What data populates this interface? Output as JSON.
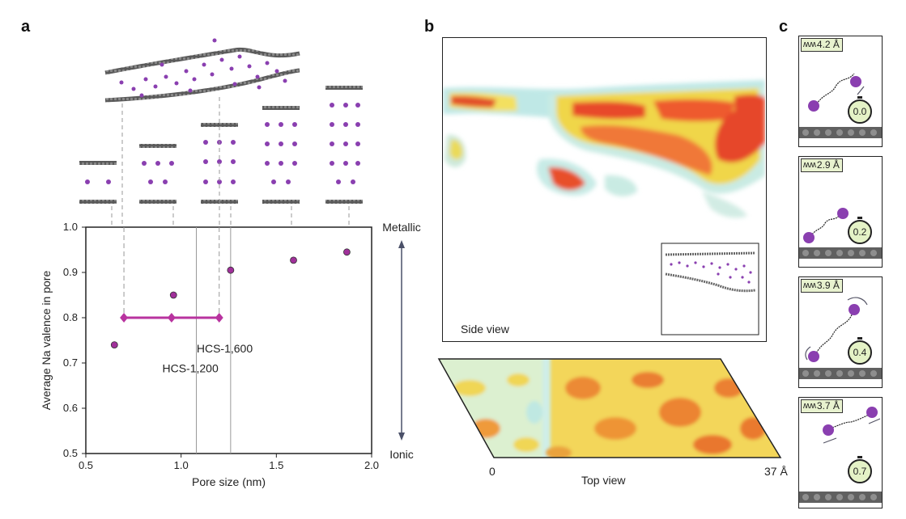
{
  "panels": {
    "a": "a",
    "b": "b",
    "c": "c"
  },
  "chart_data": {
    "type": "scatter",
    "xlabel": "Pore size (nm)",
    "ylabel": "Average Na valence in pore",
    "xlim": [
      0.5,
      2.0
    ],
    "ylim": [
      0.5,
      1.0
    ],
    "xticks": [
      "0.5",
      "1.0",
      "1.5",
      "2.0"
    ],
    "yticks": [
      "0.5",
      "0.6",
      "0.7",
      "0.8",
      "0.9",
      "1.0"
    ],
    "points": [
      {
        "x": 0.65,
        "y": 0.74
      },
      {
        "x": 0.96,
        "y": 0.85
      },
      {
        "x": 1.26,
        "y": 0.905
      },
      {
        "x": 1.59,
        "y": 0.927
      },
      {
        "x": 1.87,
        "y": 0.945
      }
    ],
    "range_bar": {
      "x_start": 0.7,
      "x_end": 1.2,
      "x_mid": 0.95,
      "y": 0.8
    },
    "reference_lines": [
      {
        "x": 1.08,
        "label": "HCS-1,200"
      },
      {
        "x": 1.26,
        "label": "HCS-1,600"
      }
    ],
    "side_axis": {
      "top": "Metallic",
      "bottom": "Ionic"
    },
    "point_color": "#a0309a",
    "bar_color": "#b8339f"
  },
  "panel_b": {
    "side_view_label": "Side view",
    "top_view_label": "Top view",
    "top_axis": {
      "start": "0",
      "end": "37 Å"
    }
  },
  "panel_c": {
    "frames": [
      {
        "distance": "4.2 Å",
        "time": "0.0"
      },
      {
        "distance": "2.9 Å",
        "time": "0.2"
      },
      {
        "distance": "3.9 Å",
        "time": "0.4"
      },
      {
        "distance": "3.7 Å",
        "time": "0.7"
      }
    ]
  }
}
